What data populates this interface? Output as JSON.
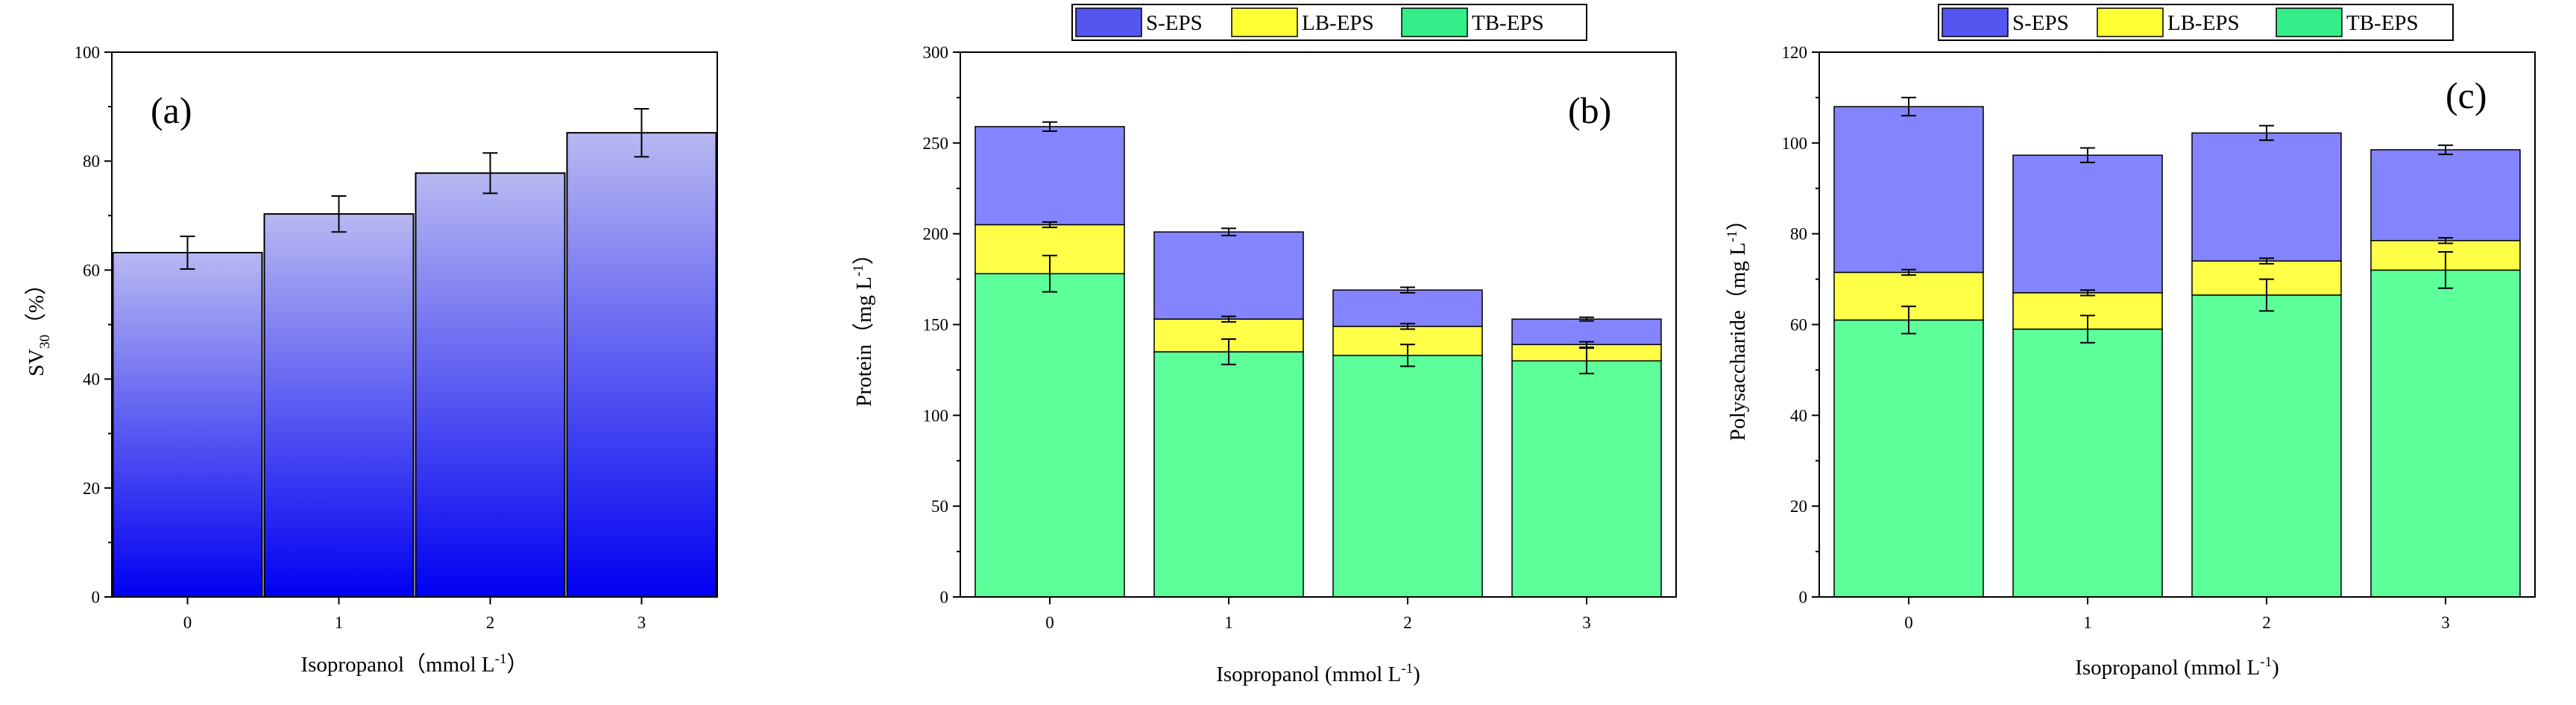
{
  "chart_data": [
    {
      "type": "bar",
      "panel_label": "(a)",
      "categories": [
        "0",
        "1",
        "2",
        "3"
      ],
      "values": [
        63.2,
        70.3,
        77.8,
        85.2
      ],
      "errors": [
        3.0,
        3.3,
        3.7,
        4.4
      ],
      "ylabel_main": "SV",
      "ylabel_sub": "30",
      "ylabel_tail": "（%）",
      "xlabel": "Isopropanol（mmol L",
      "xlabel_sup": "-1",
      "xlabel_tail": "）",
      "ylim": [
        0,
        100
      ],
      "yticks": [
        "0",
        "20",
        "40",
        "60",
        "80",
        "100"
      ],
      "bar_gradient": [
        "#b8b8f2",
        "#0000f2"
      ]
    },
    {
      "type": "bar",
      "stacked": true,
      "panel_label": "(b)",
      "categories": [
        "0",
        "1",
        "2",
        "3"
      ],
      "series": [
        {
          "name": "TB-EPS",
          "values": [
            178,
            135,
            133,
            130
          ],
          "errors": [
            10,
            7,
            6,
            7
          ],
          "color": "#5cff9a"
        },
        {
          "name": "LB-EPS",
          "values": [
            27,
            18,
            16,
            9
          ],
          "errors": [
            1.5,
            1.5,
            1.5,
            1.5
          ],
          "color": "#ffff47"
        },
        {
          "name": "S-EPS",
          "values": [
            54,
            48,
            20,
            14
          ],
          "errors": [
            2.5,
            2.0,
            1.5,
            1.0
          ],
          "color": "#8484ff"
        }
      ],
      "legend_order": [
        "S-EPS",
        "LB-EPS",
        "TB-EPS"
      ],
      "ylabel": "Protein（mg L",
      "ylabel_sup": "-1",
      "ylabel_tail": "）",
      "xlabel": "Isopropanol (mmol L",
      "xlabel_sup": "-1",
      "xlabel_tail": ")",
      "ylim": [
        0,
        300
      ],
      "yticks": [
        "0",
        "50",
        "100",
        "150",
        "200",
        "250",
        "300"
      ],
      "legend_position": "top"
    },
    {
      "type": "bar",
      "stacked": true,
      "panel_label": "(c)",
      "categories": [
        "0",
        "1",
        "2",
        "3"
      ],
      "series": [
        {
          "name": "TB-EPS",
          "values": [
            61,
            59,
            66.5,
            72
          ],
          "errors": [
            3,
            3,
            3.5,
            4
          ],
          "color": "#5cff9a"
        },
        {
          "name": "LB-EPS",
          "values": [
            10.5,
            8,
            7.5,
            6.5
          ],
          "errors": [
            0.6,
            0.6,
            0.6,
            0.6
          ],
          "color": "#ffff47"
        },
        {
          "name": "S-EPS",
          "values": [
            36.5,
            30.3,
            28.2,
            20
          ],
          "errors": [
            2,
            1.6,
            1.6,
            1.0
          ],
          "color": "#8484ff"
        }
      ],
      "legend_order": [
        "S-EPS",
        "LB-EPS",
        "TB-EPS"
      ],
      "ylabel": "Polysaccharide（mg L",
      "ylabel_sup": "-1",
      "ylabel_tail": "）",
      "xlabel": "Isopropanol (mmol L",
      "xlabel_sup": "-1",
      "xlabel_tail": ")",
      "ylim": [
        0,
        120
      ],
      "yticks": [
        "0",
        "20",
        "40",
        "60",
        "80",
        "100",
        "120"
      ],
      "legend_position": "top"
    }
  ],
  "legend_colors": {
    "S-EPS": "#5555f0",
    "LB-EPS": "#ffff33",
    "TB-EPS": "#33ee88"
  }
}
